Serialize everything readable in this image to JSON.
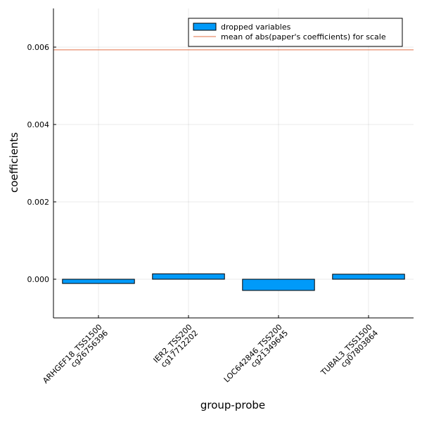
{
  "chart_data": {
    "type": "bar",
    "categories": [
      [
        "ARHGEF18_TSS1500",
        "cg26756396"
      ],
      [
        "IER2_TSS200",
        "cg17712202"
      ],
      [
        "LOC642846_TSS200",
        "cg21349645"
      ],
      [
        "TUBAL3_TSS1500",
        "cg07803864"
      ]
    ],
    "series": [
      {
        "name": "dropped variables",
        "values": [
          -0.00011,
          0.00014,
          -0.00029,
          0.00013
        ],
        "color": "#009af9"
      }
    ],
    "hline": {
      "name": "mean of abs(paper's coefficients) for scale",
      "value": 0.00593,
      "color": "#e26f46"
    },
    "xlabel": "group-probe",
    "ylabel": "coefficients",
    "ylim": [
      -0.001,
      0.007
    ],
    "yticks": [
      0.0,
      0.002,
      0.004,
      0.006
    ],
    "ytick_labels": [
      "0.000",
      "0.002",
      "0.004",
      "0.006"
    ],
    "grid": true,
    "legend_position": "top-right"
  }
}
